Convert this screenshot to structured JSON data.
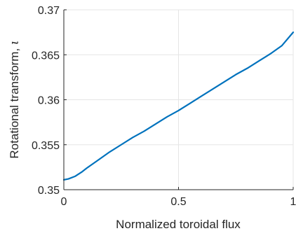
{
  "chart_data": {
    "type": "line",
    "xlabel": "Normalized toroidal flux",
    "ylabel_text": "Rotational transform, ",
    "ylabel_symbol": "ι",
    "xlim": [
      0,
      1
    ],
    "ylim": [
      0.35,
      0.37
    ],
    "x_ticks": [
      0,
      0.5,
      1
    ],
    "x_tick_labels": [
      "0",
      "0.5",
      "1"
    ],
    "y_ticks": [
      0.35,
      0.355,
      0.36,
      0.365,
      0.37
    ],
    "y_tick_labels": [
      "0.35",
      "0.355",
      "0.36",
      "0.365",
      "0.37"
    ],
    "grid": true,
    "series": [
      {
        "color": "#0072BD",
        "x": [
          0,
          0.02,
          0.05,
          0.08,
          0.1,
          0.15,
          0.2,
          0.25,
          0.3,
          0.35,
          0.4,
          0.45,
          0.5,
          0.55,
          0.6,
          0.65,
          0.7,
          0.75,
          0.8,
          0.85,
          0.9,
          0.95,
          1.0
        ],
        "y": [
          0.3511,
          0.3512,
          0.3515,
          0.352,
          0.3524,
          0.3533,
          0.3542,
          0.355,
          0.3558,
          0.3565,
          0.3573,
          0.3581,
          0.3588,
          0.3596,
          0.3604,
          0.3612,
          0.362,
          0.3628,
          0.3635,
          0.3643,
          0.3651,
          0.366,
          0.3675
        ]
      }
    ]
  }
}
